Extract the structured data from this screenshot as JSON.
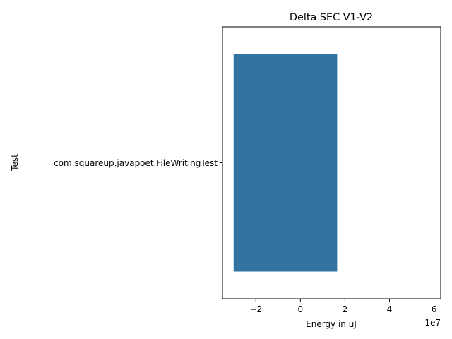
{
  "chart_data": {
    "type": "bar",
    "orientation": "horizontal",
    "title": "Delta SEC V1-V2",
    "xlabel": "Energy in uJ",
    "ylabel": "Test",
    "x_scale_label": "1e7",
    "categories": [
      "com.squareup.javapoet.FileWritingTest"
    ],
    "bars": [
      {
        "category": "com.squareup.javapoet.FileWritingTest",
        "start": -30000000,
        "end": 16500000
      }
    ],
    "xlim": [
      -35000000,
      63000000
    ],
    "x_ticks": [
      {
        "value": -20000000,
        "label": "−2"
      },
      {
        "value": 0,
        "label": "0"
      },
      {
        "value": 20000000,
        "label": "2"
      },
      {
        "value": 40000000,
        "label": "4"
      },
      {
        "value": 60000000,
        "label": "6"
      }
    ],
    "bar_color": "#3274a1",
    "grid": false,
    "legend": "none"
  }
}
